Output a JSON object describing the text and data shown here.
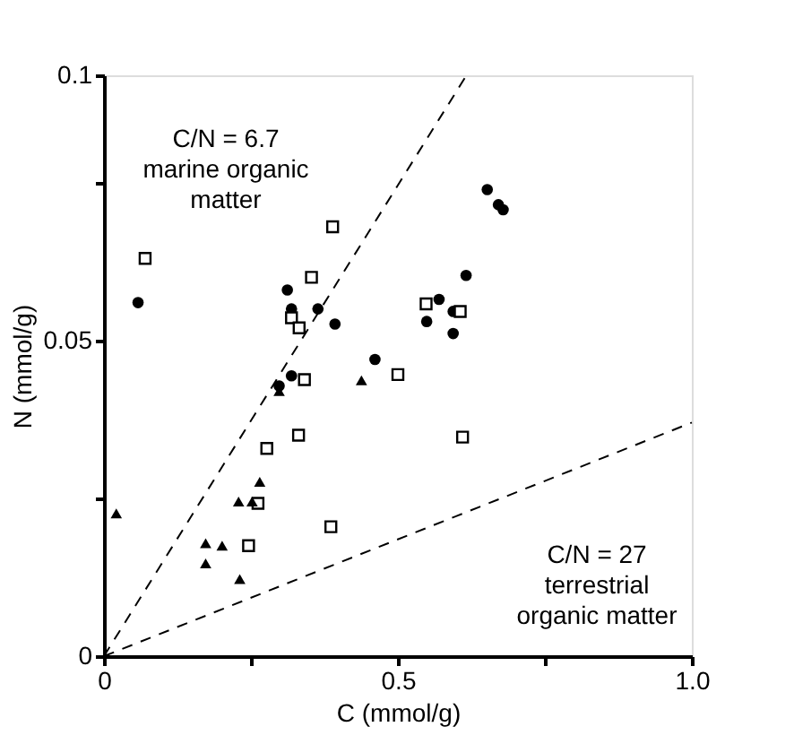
{
  "chart_data": {
    "type": "scatter",
    "xlabel": "C (mmol/g)",
    "ylabel": "N (mmol/g)",
    "xlim": [
      0,
      1
    ],
    "ylim": [
      0,
      0.092
    ],
    "xticks": [
      0,
      {
        "value": 0.25,
        "label": null
      },
      0.5,
      {
        "value": 0.75,
        "label": null
      },
      {
        "value": 1,
        "label": "1.0"
      }
    ],
    "yticks": [
      0,
      {
        "value": 0.025,
        "label": null
      },
      0.05,
      {
        "value": 0.075,
        "label": null
      },
      {
        "value": 0.092,
        "label": "0.1"
      }
    ],
    "grid": false,
    "series": [
      {
        "color": "#000000",
        "marker": "circle",
        "x": [
          0.058,
          0.312,
          0.319,
          0.364,
          0.393,
          0.461,
          0.652,
          0.671,
          0.679,
          0.616,
          0.57,
          0.594,
          0.549,
          0.594,
          0.319,
          0.298
        ],
        "values": [
          0.056,
          0.058,
          0.055,
          0.055,
          0.0526,
          0.047,
          0.0739,
          0.0715,
          0.0707,
          0.0603,
          0.0565,
          0.0546,
          0.053,
          0.0511,
          0.0444,
          0.0428
        ]
      },
      {
        "color": "#000000",
        "marker": "square",
        "x": [
          0.07,
          0.389,
          0.353,
          0.319,
          0.332,
          0.548,
          0.606,
          0.5,
          0.341,
          0.331,
          0.277,
          0.262,
          0.386,
          0.246,
          0.61
        ],
        "values": [
          0.063,
          0.068,
          0.06,
          0.0536,
          0.052,
          0.0558,
          0.0546,
          0.0446,
          0.0438,
          0.035,
          0.0329,
          0.0242,
          0.0205,
          0.0175,
          0.0347
        ]
      },
      {
        "color": "#000000",
        "marker": "triangle",
        "x": [
          0.298,
          0.438,
          0.265,
          0.229,
          0.252,
          0.021,
          0.173,
          0.201,
          0.173,
          0.231
        ],
        "values": [
          0.042,
          0.0437,
          0.0276,
          0.0245,
          0.0245,
          0.0226,
          0.0179,
          0.0175,
          0.0147,
          0.0122
        ]
      },
      {
        "type": "line",
        "color": "#000000",
        "line_style": "dashed",
        "x": [
          0,
          0.616
        ],
        "values": [
          0,
          0.0919
        ]
      },
      {
        "type": "line",
        "color": "#000000",
        "line_style": "dashed",
        "x": [
          0,
          1
        ],
        "values": [
          0,
          0.037
        ]
      }
    ],
    "annotations": [
      "C/N = 6.7\nmarine organic\nmatter",
      "C/N = 27\nterrestrial\norganic matter"
    ]
  }
}
